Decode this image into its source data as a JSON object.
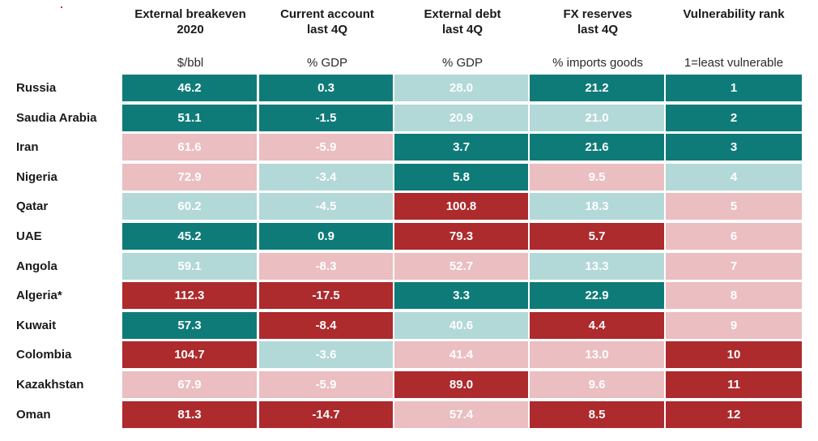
{
  "columns": [
    {
      "title_line1": "External breakeven",
      "title_line2": "2020",
      "unit": "$/bbl"
    },
    {
      "title_line1": "Current account",
      "title_line2": "last 4Q",
      "unit": "% GDP"
    },
    {
      "title_line1": "External debt",
      "title_line2": "last 4Q",
      "unit": "% GDP"
    },
    {
      "title_line1": "FX reserves",
      "title_line2": "last 4Q",
      "unit": "% imports goods"
    },
    {
      "title_line1": "Vulnerability rank",
      "title_line2": "",
      "unit": "1=least vulnerable"
    }
  ],
  "colors": {
    "teal": "#0f7b79",
    "light_teal": "#b3d8d8",
    "pink": "#ebbec1",
    "red": "#ad2a2d"
  },
  "chart_data": {
    "type": "table",
    "rows": [
      {
        "country": "Russia",
        "cells": [
          {
            "v": "46.2",
            "c": "teal"
          },
          {
            "v": "0.3",
            "c": "teal"
          },
          {
            "v": "28.0",
            "c": "light_teal"
          },
          {
            "v": "21.2",
            "c": "teal"
          },
          {
            "v": "1",
            "c": "teal"
          }
        ]
      },
      {
        "country": "Saudia Arabia",
        "cells": [
          {
            "v": "51.1",
            "c": "teal"
          },
          {
            "v": "-1.5",
            "c": "teal"
          },
          {
            "v": "20.9",
            "c": "light_teal"
          },
          {
            "v": "21.0",
            "c": "light_teal"
          },
          {
            "v": "2",
            "c": "teal"
          }
        ]
      },
      {
        "country": "Iran",
        "cells": [
          {
            "v": "61.6",
            "c": "pink"
          },
          {
            "v": "-5.9",
            "c": "pink"
          },
          {
            "v": "3.7",
            "c": "teal"
          },
          {
            "v": "21.6",
            "c": "teal"
          },
          {
            "v": "3",
            "c": "teal"
          }
        ]
      },
      {
        "country": "Nigeria",
        "cells": [
          {
            "v": "72.9",
            "c": "pink"
          },
          {
            "v": "-3.4",
            "c": "light_teal"
          },
          {
            "v": "5.8",
            "c": "teal"
          },
          {
            "v": "9.5",
            "c": "pink"
          },
          {
            "v": "4",
            "c": "light_teal"
          }
        ]
      },
      {
        "country": "Qatar",
        "cells": [
          {
            "v": "60.2",
            "c": "light_teal"
          },
          {
            "v": "-4.5",
            "c": "light_teal"
          },
          {
            "v": "100.8",
            "c": "red"
          },
          {
            "v": "18.3",
            "c": "light_teal"
          },
          {
            "v": "5",
            "c": "pink"
          }
        ]
      },
      {
        "country": "UAE",
        "cells": [
          {
            "v": "45.2",
            "c": "teal"
          },
          {
            "v": "0.9",
            "c": "teal"
          },
          {
            "v": "79.3",
            "c": "red"
          },
          {
            "v": "5.7",
            "c": "red"
          },
          {
            "v": "6",
            "c": "pink"
          }
        ]
      },
      {
        "country": "Angola",
        "cells": [
          {
            "v": "59.1",
            "c": "light_teal"
          },
          {
            "v": "-8.3",
            "c": "pink"
          },
          {
            "v": "52.7",
            "c": "pink"
          },
          {
            "v": "13.3",
            "c": "light_teal"
          },
          {
            "v": "7",
            "c": "pink"
          }
        ]
      },
      {
        "country": "Algeria*",
        "cells": [
          {
            "v": "112.3",
            "c": "red"
          },
          {
            "v": "-17.5",
            "c": "red"
          },
          {
            "v": "3.3",
            "c": "teal"
          },
          {
            "v": "22.9",
            "c": "teal"
          },
          {
            "v": "8",
            "c": "pink"
          }
        ]
      },
      {
        "country": "Kuwait",
        "cells": [
          {
            "v": "57.3",
            "c": "teal"
          },
          {
            "v": "-8.4",
            "c": "red"
          },
          {
            "v": "40.6",
            "c": "light_teal"
          },
          {
            "v": "4.4",
            "c": "red"
          },
          {
            "v": "9",
            "c": "pink"
          }
        ]
      },
      {
        "country": "Colombia",
        "cells": [
          {
            "v": "104.7",
            "c": "red"
          },
          {
            "v": "-3.6",
            "c": "light_teal"
          },
          {
            "v": "41.4",
            "c": "pink"
          },
          {
            "v": "13.0",
            "c": "pink"
          },
          {
            "v": "10",
            "c": "red"
          }
        ]
      },
      {
        "country": "Kazakhstan",
        "cells": [
          {
            "v": "67.9",
            "c": "pink"
          },
          {
            "v": "-5.9",
            "c": "pink"
          },
          {
            "v": "89.0",
            "c": "red"
          },
          {
            "v": "9.6",
            "c": "pink"
          },
          {
            "v": "11",
            "c": "red"
          }
        ]
      },
      {
        "country": "Oman",
        "cells": [
          {
            "v": "81.3",
            "c": "red"
          },
          {
            "v": "-14.7",
            "c": "red"
          },
          {
            "v": "57.4",
            "c": "pink"
          },
          {
            "v": "8.5",
            "c": "red"
          },
          {
            "v": "12",
            "c": "red"
          }
        ]
      }
    ]
  }
}
